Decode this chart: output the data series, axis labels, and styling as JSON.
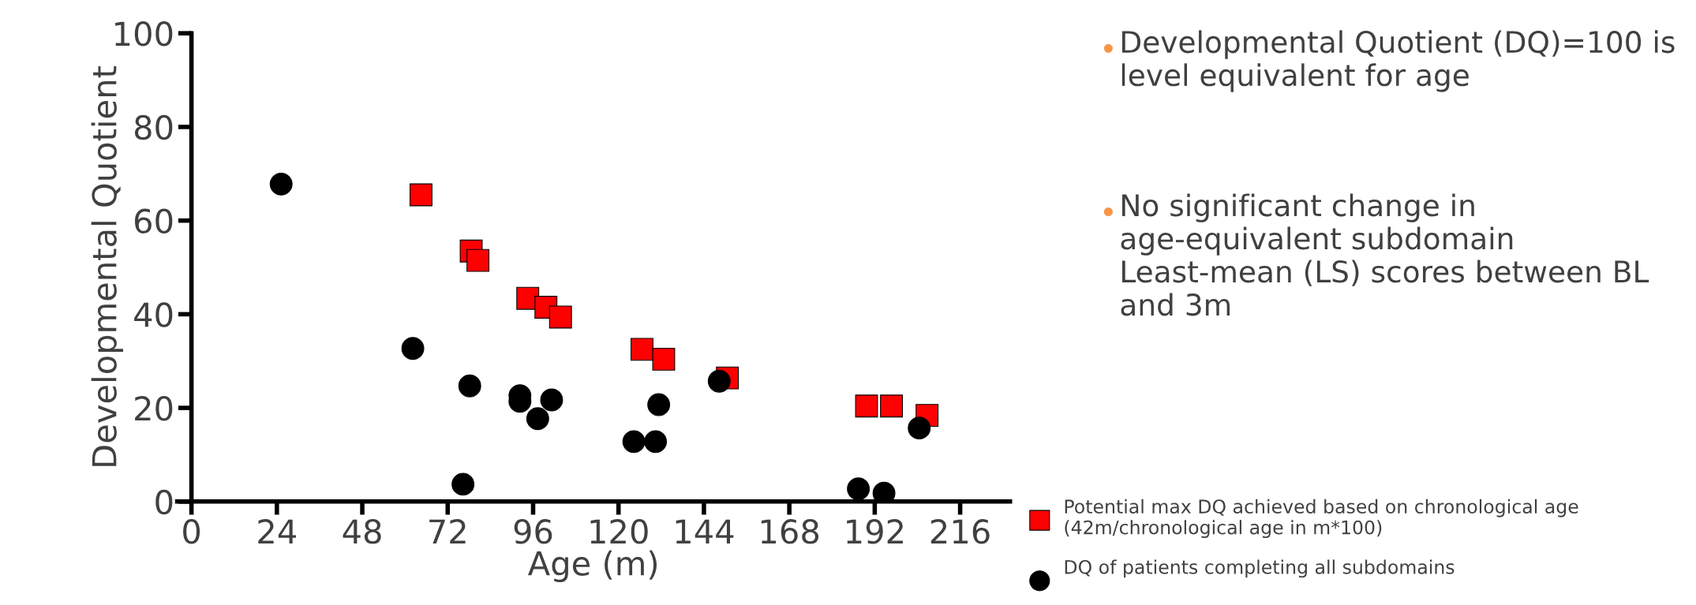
{
  "chart_data": {
    "type": "scatter",
    "xlabel": "Age (m)",
    "ylabel": "Developmental Quotient",
    "xlim": [
      -4,
      230
    ],
    "ylim": [
      0,
      100
    ],
    "xticks": [
      0,
      24,
      48,
      72,
      96,
      120,
      144,
      168,
      192,
      216
    ],
    "yticks": [
      0,
      20,
      40,
      60,
      80,
      100
    ],
    "grid": false,
    "legend": "bottom right",
    "series": [
      {
        "name": "Potential max DQ achieved based on chronological age (42m/chronological age in m*100)",
        "color": "#ff0000",
        "marker": "square",
        "x": [
          64.5,
          78.6,
          80.5,
          94.5,
          99.6,
          103.7,
          126.6,
          132.7,
          150.6,
          189.7,
          196.7,
          206.7
        ],
        "values": [
          65.5,
          53.5,
          51.5,
          43.4,
          41.5,
          39.4,
          32.5,
          30.4,
          26.4,
          20.4,
          20.4,
          18.4
        ]
      },
      {
        "name": "DQ of patients completing all subdomains",
        "color": "#000000",
        "marker": "circle",
        "x": [
          25.2,
          62.2,
          78.2,
          76.3,
          92.3,
          92.3,
          101.2,
          97.3,
          124.3,
          130.4,
          131.3,
          148.3,
          187.4,
          194.6,
          204.5
        ],
        "values": [
          67.8,
          32.7,
          24.7,
          3.7,
          22.6,
          21.4,
          21.7,
          17.7,
          12.8,
          12.8,
          20.7,
          25.7,
          2.7,
          1.8,
          15.7
        ]
      }
    ],
    "annotations": [
      "Developmental Quotient (DQ)=100 is level equivalent for age",
      "No significant change in age-equivalent subdomain Least-mean (LS) scores between BL and 3m"
    ]
  }
}
